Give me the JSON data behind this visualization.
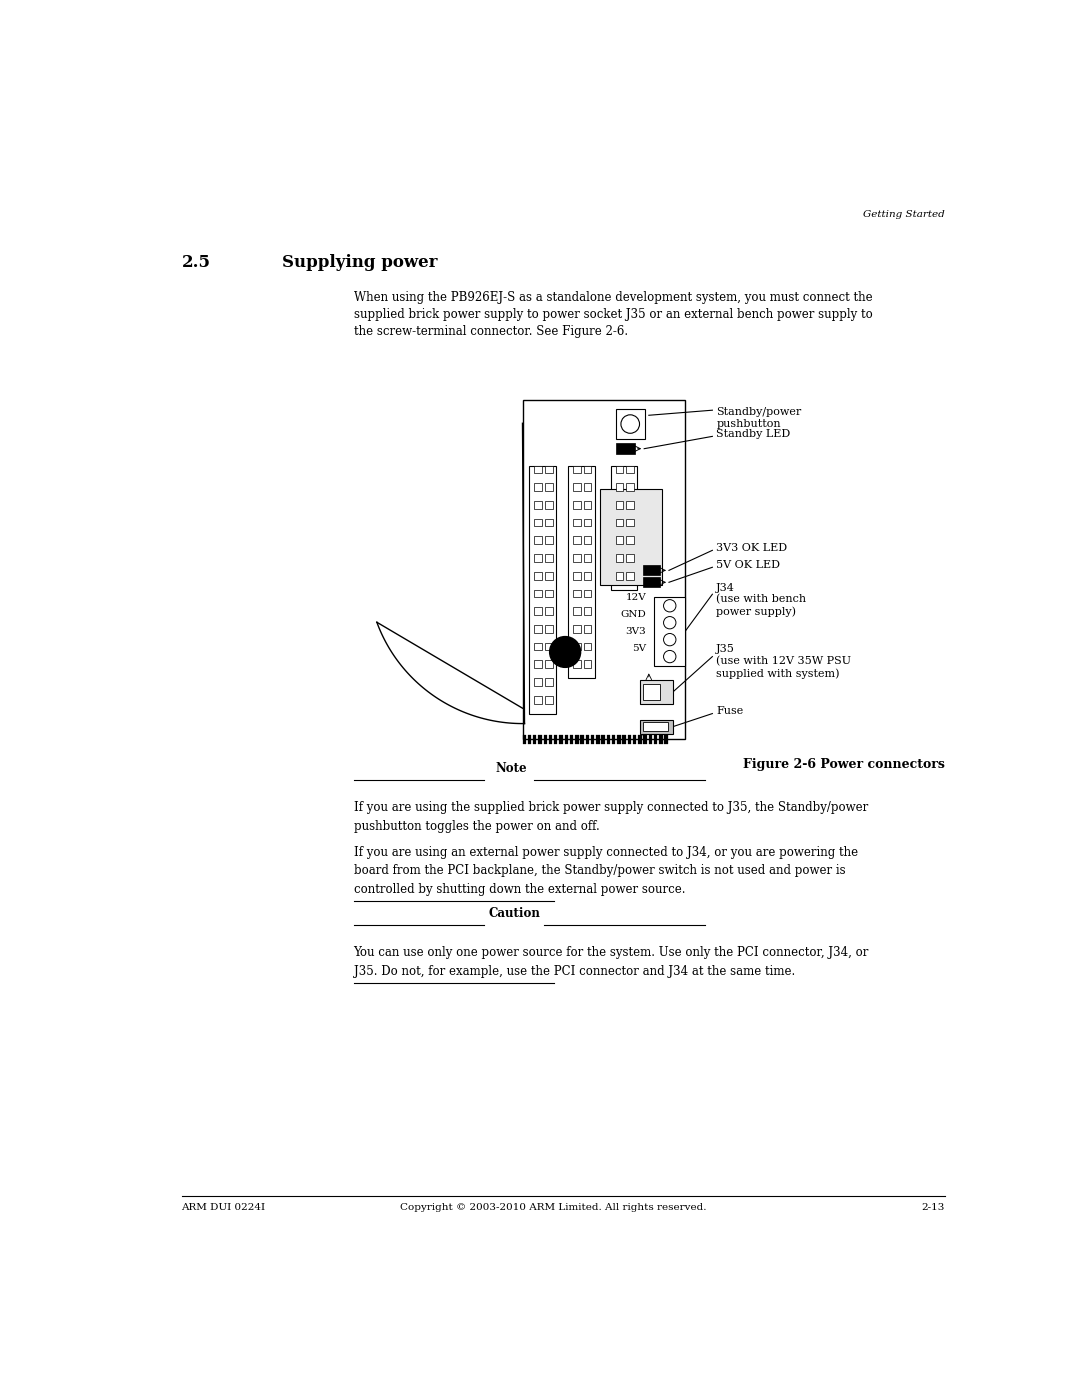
{
  "page_width": 10.8,
  "page_height": 13.97,
  "bg_color": "#ffffff",
  "header_text": "Getting Started",
  "section_number": "2.5",
  "section_title": "Supplying power",
  "body_text_line1": "When using the PB926EJ-S as a standalone development system, you must connect the",
  "body_text_line2": "supplied brick power supply to power socket J35 or an external bench power supply to",
  "body_text_line3": "the screw-terminal connector. See Figure 2-6.",
  "figure_caption": "Figure 2-6 Power connectors",
  "note_title": "Note",
  "note_text1": "If you are using the supplied brick power supply connected to J35, the Standby/power",
  "note_text2": "pushbutton toggles the power on and off.",
  "note_text3": "If you are using an external power supply connected to J34, or you are powering the",
  "note_text4": "board from the PCI backplane, the Standby/power switch is not used and power is",
  "note_text5": "controlled by shutting down the external power source.",
  "caution_title": "Caution",
  "caution_text1": "You can use only one power source for the system. Use only the PCI connector, J34, or",
  "caution_text2": "J35. Do not, for example, use the PCI connector and J34 at the same time.",
  "footer_left": "ARM DUI 0224I",
  "footer_center": "Copyright © 2003-2010 ARM Limited. All rights reserved.",
  "footer_right": "2-13",
  "label_standby_power": "Standby/power\npushbutton",
  "label_standby_led": "Standby LED",
  "label_3v3": "3V3 OK LED",
  "label_5v": "5V OK LED",
  "label_j34": "J34\n(use with bench\npower supply)",
  "label_j35": "J35\n(use with 12V 35W PSU\nsupplied with system)",
  "label_fuse": "Fuse",
  "label_12v": "12V",
  "label_gnd": "GND",
  "label_3v3b": "3V3",
  "label_5vb": "5V"
}
